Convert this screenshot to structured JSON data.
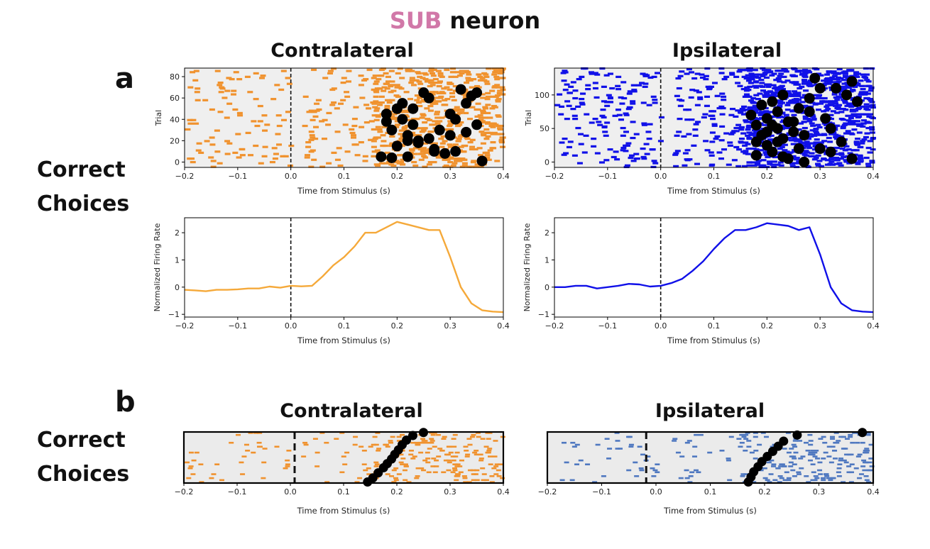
{
  "figure": {
    "title_highlight": "SUB",
    "title_rest": " neuron",
    "panel_a_letter": "a",
    "panel_b_letter": "b",
    "row_label_a_line1": "Correct",
    "row_label_a_line2": "Choices",
    "row_label_b_line1": "Correct",
    "row_label_b_line2": "Choices",
    "a_left_title": "Contralateral",
    "a_right_title": "Ipsilateral",
    "b_left_title": "Contralateral",
    "b_right_title": "Ipsilateral",
    "colors": {
      "contra": "#f0922e",
      "contra_line": "#f5a93a",
      "ipsi": "#1010e8",
      "ipsi_b": "#4f78c0",
      "highlight": "#d178a8"
    }
  },
  "chart_data": [
    {
      "id": "a-contra-raster",
      "type": "scatter",
      "xlabel": "Time from Stimulus (s)",
      "ylabel": "Trial",
      "xlim": [
        -0.2,
        0.4
      ],
      "ylim": [
        -5,
        88
      ],
      "xticks": [
        -0.2,
        -0.1,
        0.0,
        0.1,
        0.2,
        0.3,
        0.4
      ],
      "yticks": [
        0,
        20,
        40,
        60,
        80
      ],
      "xtick_labels": [
        "−0.2",
        "−0.1",
        "0.0",
        "0.1",
        "0.2",
        "0.3",
        "0.4"
      ],
      "ytick_labels": [
        "0",
        "20",
        "40",
        "60",
        "80"
      ],
      "stimulus_line_x": 0.0,
      "markers_x": [
        0.17,
        0.18,
        0.19,
        0.2,
        0.21,
        0.21,
        0.22,
        0.23,
        0.24,
        0.25,
        0.26,
        0.27,
        0.28,
        0.29,
        0.3,
        0.31,
        0.32,
        0.33,
        0.34,
        0.35,
        0.36,
        0.19,
        0.22,
        0.24,
        0.27,
        0.3,
        0.33,
        0.2,
        0.23,
        0.18,
        0.22,
        0.26,
        0.31,
        0.35
      ],
      "markers_y": [
        5,
        45,
        30,
        15,
        40,
        55,
        25,
        50,
        20,
        65,
        60,
        10,
        30,
        8,
        25,
        40,
        68,
        55,
        62,
        35,
        1,
        4,
        5,
        18,
        12,
        45,
        28,
        50,
        35,
        38,
        20,
        22,
        10,
        65
      ]
    },
    {
      "id": "a-ipsi-raster",
      "type": "scatter",
      "xlabel": "Time from Stimulus (s)",
      "ylabel": "Trial",
      "xlim": [
        -0.2,
        0.4
      ],
      "ylim": [
        -8,
        140
      ],
      "xticks": [
        -0.2,
        -0.1,
        0.0,
        0.1,
        0.2,
        0.3,
        0.4
      ],
      "yticks": [
        0,
        50,
        100
      ],
      "xtick_labels": [
        "−0.2",
        "−0.1",
        "0.0",
        "0.1",
        "0.2",
        "0.3",
        "0.4"
      ],
      "ytick_labels": [
        "0",
        "50",
        "100"
      ],
      "stimulus_line_x": 0.0,
      "markers_x": [
        0.17,
        0.18,
        0.18,
        0.19,
        0.19,
        0.2,
        0.2,
        0.21,
        0.21,
        0.22,
        0.22,
        0.23,
        0.23,
        0.24,
        0.24,
        0.25,
        0.26,
        0.26,
        0.27,
        0.28,
        0.29,
        0.3,
        0.31,
        0.32,
        0.33,
        0.34,
        0.35,
        0.36,
        0.37,
        0.2,
        0.22,
        0.25,
        0.27,
        0.3,
        0.18,
        0.23,
        0.28,
        0.32,
        0.36,
        0.21
      ],
      "markers_y": [
        70,
        10,
        55,
        40,
        85,
        25,
        65,
        15,
        90,
        50,
        75,
        35,
        100,
        5,
        60,
        45,
        80,
        20,
        0,
        95,
        125,
        110,
        65,
        50,
        110,
        30,
        100,
        5,
        90,
        45,
        30,
        60,
        40,
        20,
        30,
        8,
        75,
        15,
        120,
        55
      ]
    },
    {
      "id": "a-contra-rate",
      "type": "line",
      "xlabel": "Time from Stimulus (s)",
      "ylabel": "Normalized Firing Rate",
      "xlim": [
        -0.2,
        0.4
      ],
      "ylim": [
        -1.1,
        2.55
      ],
      "xticks": [
        -0.2,
        -0.1,
        0.0,
        0.1,
        0.2,
        0.3,
        0.4
      ],
      "yticks": [
        -1,
        0,
        1,
        2
      ],
      "xtick_labels": [
        "−0.2",
        "−0.1",
        "0.0",
        "0.1",
        "0.2",
        "0.3",
        "0.4"
      ],
      "ytick_labels": [
        "−1",
        "0",
        "1",
        "2"
      ],
      "stimulus_line_x": 0.0,
      "x": [
        -0.2,
        -0.18,
        -0.16,
        -0.14,
        -0.12,
        -0.1,
        -0.08,
        -0.06,
        -0.04,
        -0.02,
        0.0,
        0.02,
        0.04,
        0.06,
        0.08,
        0.1,
        0.12,
        0.14,
        0.16,
        0.18,
        0.2,
        0.22,
        0.24,
        0.26,
        0.28,
        0.3,
        0.32,
        0.34,
        0.36,
        0.38,
        0.4
      ],
      "values": [
        -0.1,
        -0.12,
        -0.15,
        -0.1,
        -0.1,
        -0.08,
        -0.05,
        -0.05,
        0.02,
        -0.02,
        0.05,
        0.03,
        0.05,
        0.4,
        0.8,
        1.1,
        1.5,
        2.0,
        2.0,
        2.2,
        2.4,
        2.3,
        2.2,
        2.1,
        2.1,
        1.1,
        0.0,
        -0.6,
        -0.85,
        -0.9,
        -0.92
      ]
    },
    {
      "id": "a-ipsi-rate",
      "type": "line",
      "xlabel": "Time from Stimulus (s)",
      "ylabel": "Normalized Firing Rate",
      "xlim": [
        -0.2,
        0.4
      ],
      "ylim": [
        -1.1,
        2.55
      ],
      "xticks": [
        -0.2,
        -0.1,
        0.0,
        0.1,
        0.2,
        0.3,
        0.4
      ],
      "yticks": [
        -1,
        0,
        1,
        2
      ],
      "xtick_labels": [
        "−0.2",
        "−0.1",
        "0.0",
        "0.1",
        "0.2",
        "0.3",
        "0.4"
      ],
      "ytick_labels": [
        "−1",
        "0",
        "1",
        "2"
      ],
      "stimulus_line_x": 0.0,
      "x": [
        -0.2,
        -0.18,
        -0.16,
        -0.14,
        -0.12,
        -0.1,
        -0.08,
        -0.06,
        -0.04,
        -0.02,
        0.0,
        0.02,
        0.04,
        0.06,
        0.08,
        0.1,
        0.12,
        0.14,
        0.16,
        0.18,
        0.2,
        0.22,
        0.24,
        0.26,
        0.28,
        0.3,
        0.32,
        0.34,
        0.36,
        0.38,
        0.4
      ],
      "values": [
        0.0,
        0.0,
        0.05,
        0.05,
        -0.05,
        0.0,
        0.05,
        0.12,
        0.1,
        0.02,
        0.05,
        0.15,
        0.3,
        0.6,
        0.95,
        1.4,
        1.8,
        2.1,
        2.1,
        2.2,
        2.35,
        2.3,
        2.25,
        2.1,
        2.2,
        1.2,
        0.0,
        -0.6,
        -0.85,
        -0.9,
        -0.92
      ]
    },
    {
      "id": "b-contra-raster",
      "type": "scatter",
      "xlabel": "Time from Stimulus (s)",
      "ylabel": "",
      "xlim": [
        -0.2,
        0.4
      ],
      "ylim": [
        0,
        1
      ],
      "xticks": [
        -0.2,
        -0.1,
        0.0,
        0.1,
        0.2,
        0.3,
        0.4
      ],
      "yticks": [],
      "xtick_labels": [
        "−0.2",
        "−0.1",
        "0.0",
        "0.1",
        "0.2",
        "0.3",
        "0.4"
      ],
      "ytick_labels": [],
      "stimulus_line_x": 0.008,
      "markers_x": [
        0.145,
        0.155,
        0.165,
        0.175,
        0.182,
        0.19,
        0.196,
        0.203,
        0.21,
        0.218,
        0.23,
        0.25
      ],
      "markers_y": [
        0.02,
        0.1,
        0.2,
        0.3,
        0.38,
        0.47,
        0.56,
        0.65,
        0.75,
        0.84,
        0.93,
        0.99
      ]
    },
    {
      "id": "b-ipsi-raster",
      "type": "scatter",
      "xlabel": "Time from Stimulus (s)",
      "ylabel": "",
      "xlim": [
        -0.2,
        0.4
      ],
      "ylim": [
        0,
        1
      ],
      "xticks": [
        -0.2,
        -0.1,
        0.0,
        0.1,
        0.2,
        0.3,
        0.4
      ],
      "yticks": [],
      "xtick_labels": [
        "−0.2",
        "−0.1",
        "0.0",
        "0.1",
        "0.2",
        "0.3",
        "0.4"
      ],
      "ytick_labels": [],
      "stimulus_line_x": -0.018,
      "markers_x": [
        0.17,
        0.175,
        0.18,
        0.188,
        0.195,
        0.205,
        0.215,
        0.225,
        0.235,
        0.26,
        0.38
      ],
      "markers_y": [
        0.02,
        0.12,
        0.22,
        0.32,
        0.42,
        0.52,
        0.62,
        0.72,
        0.82,
        0.94,
        0.99
      ]
    }
  ]
}
